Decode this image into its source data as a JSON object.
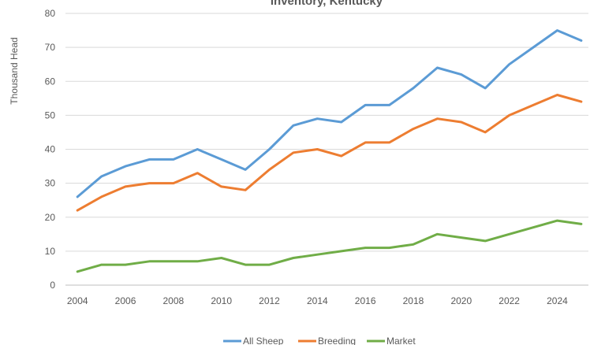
{
  "chart_data": {
    "type": "line",
    "title": "Inventory, Kentucky",
    "xlabel": "",
    "ylabel": "Thousand Head",
    "ylim": [
      0,
      80
    ],
    "yticks": [
      "0",
      "10",
      "20",
      "30",
      "40",
      "50",
      "60",
      "70",
      "80"
    ],
    "xticks": [
      "2004",
      "2006",
      "2008",
      "2010",
      "2012",
      "2014",
      "2016",
      "2018",
      "2020",
      "2022",
      "2024"
    ],
    "x": [
      2004,
      2005,
      2006,
      2007,
      2008,
      2009,
      2010,
      2011,
      2012,
      2013,
      2014,
      2015,
      2016,
      2017,
      2018,
      2019,
      2020,
      2021,
      2022,
      2023,
      2024,
      2025
    ],
    "grid": true,
    "legend_position": "bottom",
    "series": [
      {
        "name": "All Sheep",
        "color": "#5B9BD5",
        "values": [
          26,
          32,
          35,
          37,
          37,
          40,
          37,
          34,
          40,
          47,
          49,
          48,
          53,
          53,
          58,
          64,
          62,
          58,
          65,
          70,
          75,
          72
        ]
      },
      {
        "name": "Breeding",
        "color": "#ED7D31",
        "values": [
          22,
          26,
          29,
          30,
          30,
          33,
          29,
          28,
          34,
          39,
          40,
          38,
          42,
          42,
          46,
          49,
          48,
          45,
          50,
          53,
          56,
          54
        ]
      },
      {
        "name": "Market",
        "color": "#70AD47",
        "values": [
          4,
          6,
          6,
          7,
          7,
          7,
          8,
          6,
          6,
          8,
          9,
          10,
          11,
          11,
          12,
          15,
          14,
          13,
          15,
          17,
          19,
          18
        ]
      }
    ]
  }
}
